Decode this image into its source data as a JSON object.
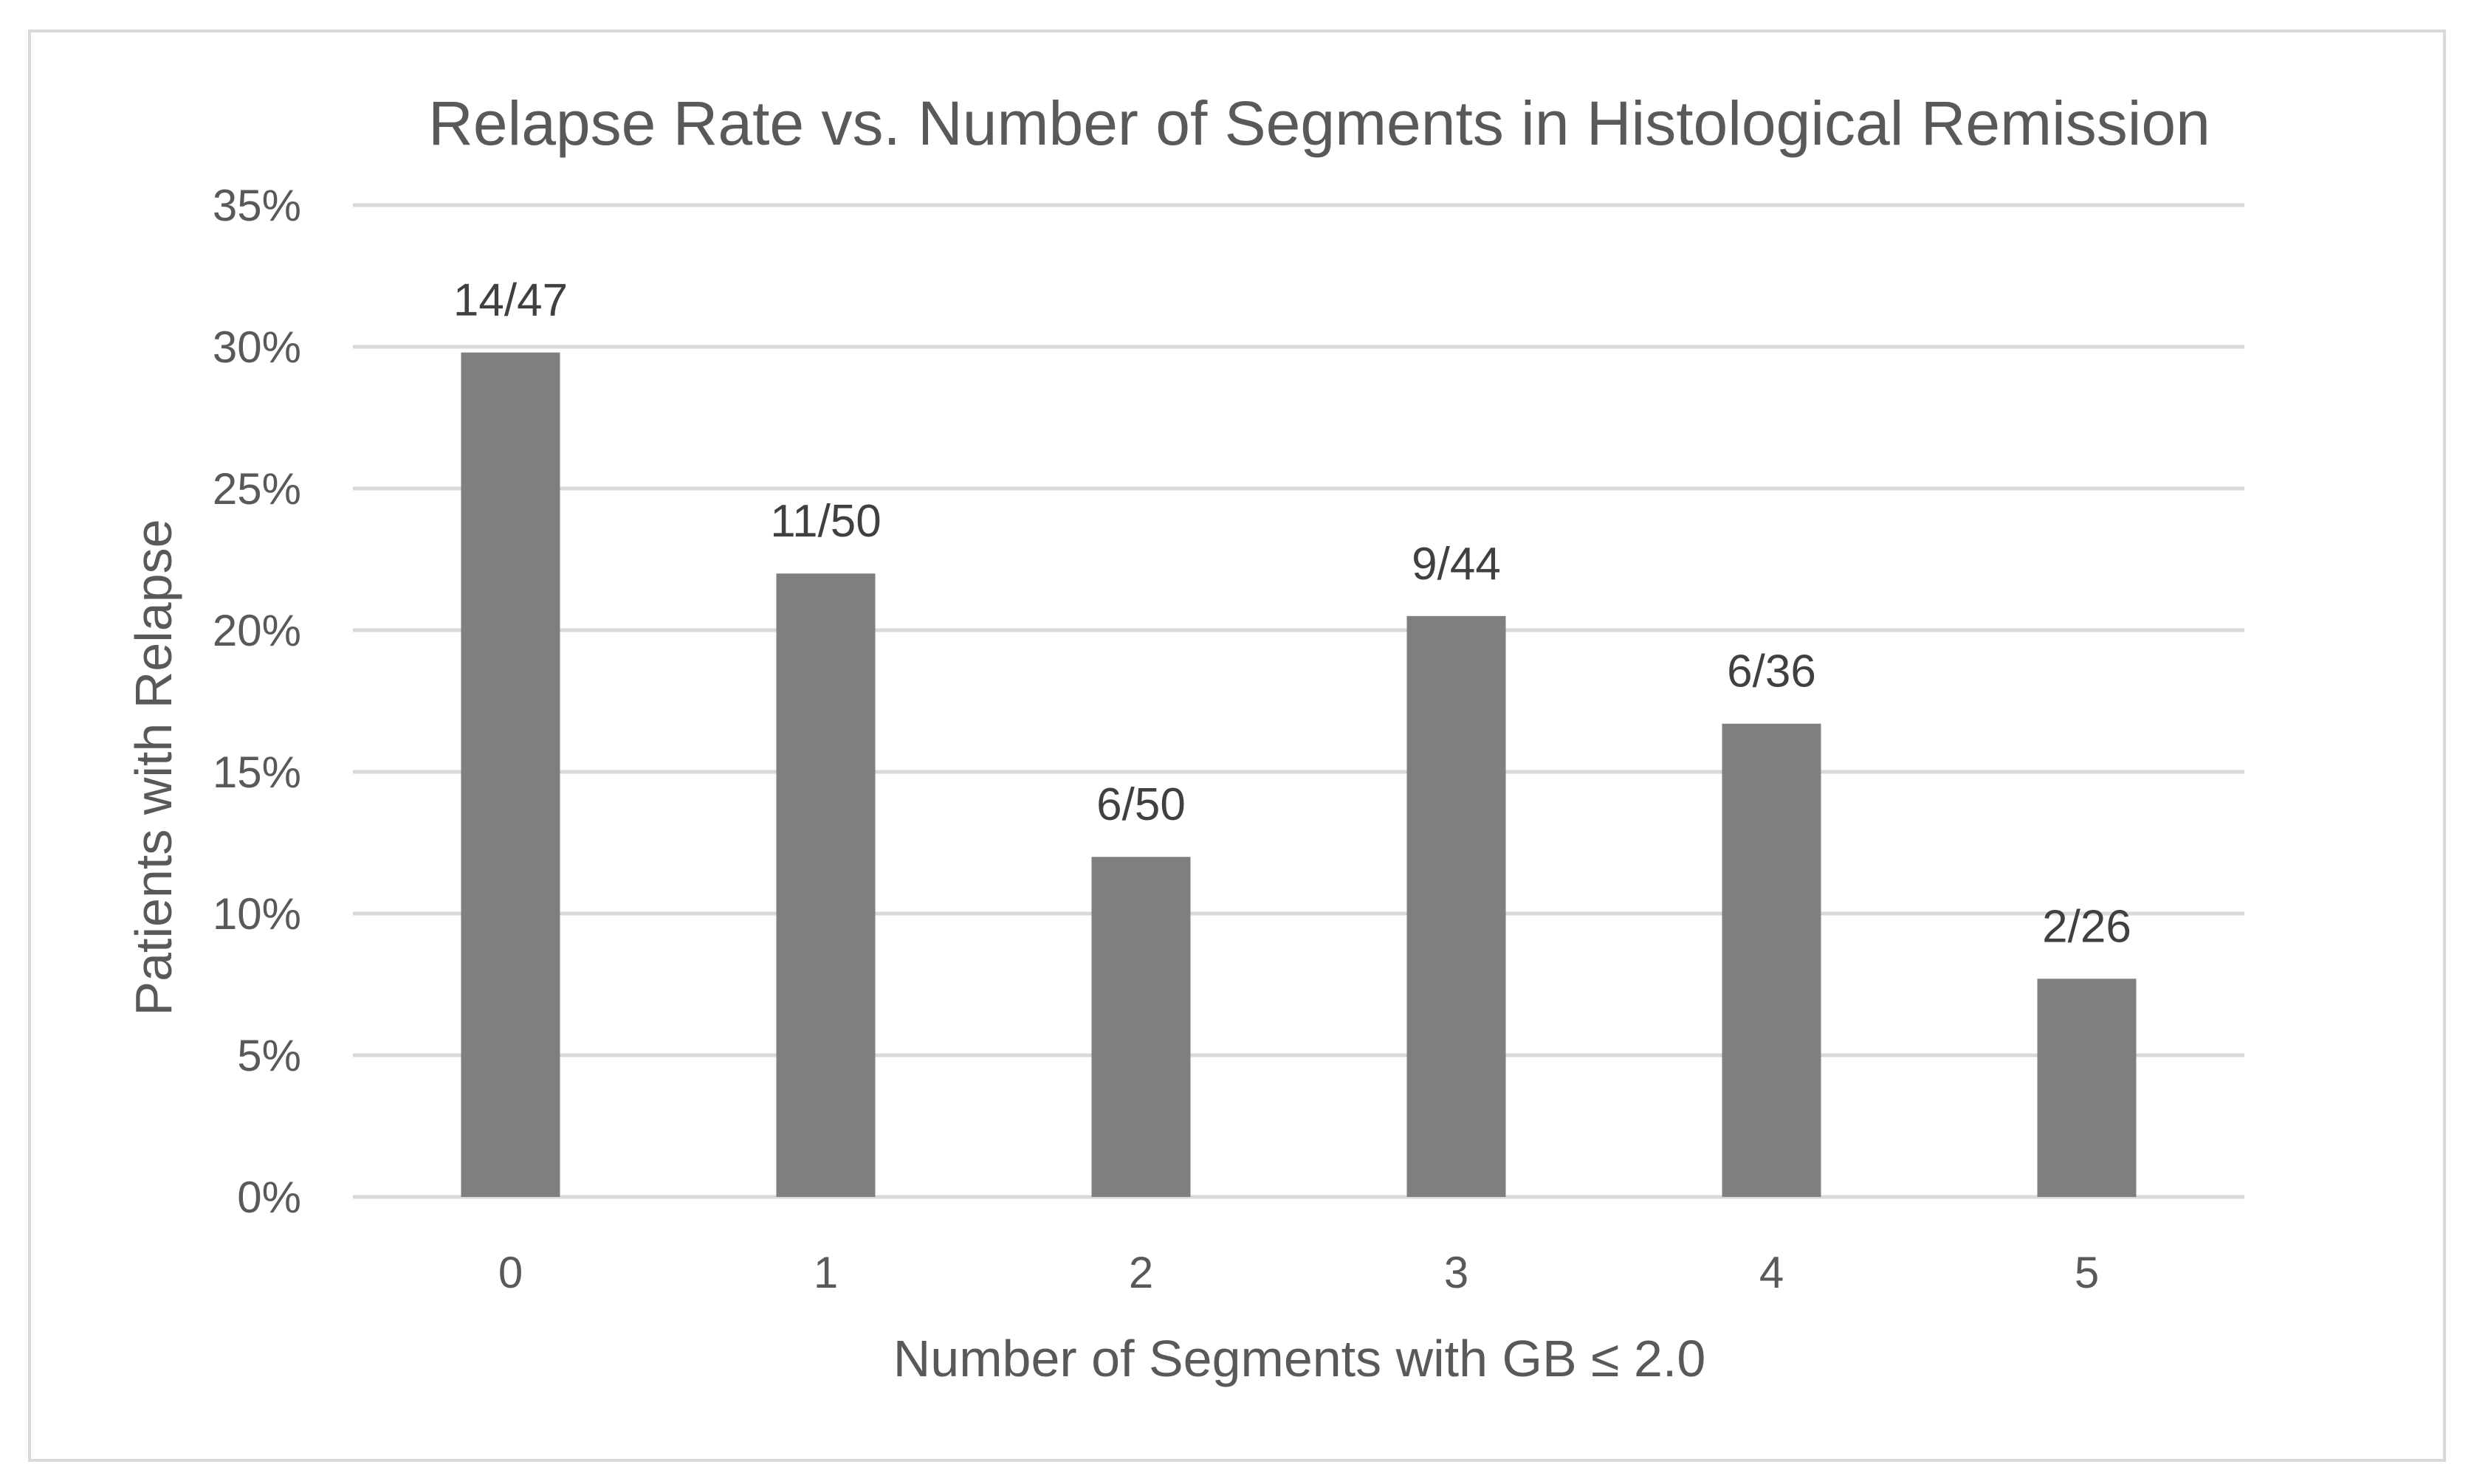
{
  "chart_data": {
    "type": "bar",
    "title": "Relapse Rate vs. Number of Segments in Histological Remission",
    "xlabel": "Number of Segments with GB ≤ 2.0",
    "ylabel": "Patients with Relapse",
    "categories": [
      "0",
      "1",
      "2",
      "3",
      "4",
      "5"
    ],
    "values": [
      29.8,
      22.0,
      12.0,
      20.5,
      16.7,
      7.7
    ],
    "data_labels": [
      "14/47",
      "11/50",
      "6/50",
      "9/44",
      "6/36",
      "2/26"
    ],
    "ylim": [
      0,
      35
    ],
    "yticks": [
      0,
      5,
      10,
      15,
      20,
      25,
      30,
      35
    ],
    "ytick_labels": [
      "0%",
      "5%",
      "10%",
      "15%",
      "20%",
      "25%",
      "30%",
      "35%"
    ],
    "grid": true,
    "legend": "none",
    "colors": {
      "bar": "#7f7f7f",
      "grid": "#d9d9d9",
      "text": "#595959",
      "data_label": "#404040",
      "border": "#d9d9d9"
    }
  }
}
